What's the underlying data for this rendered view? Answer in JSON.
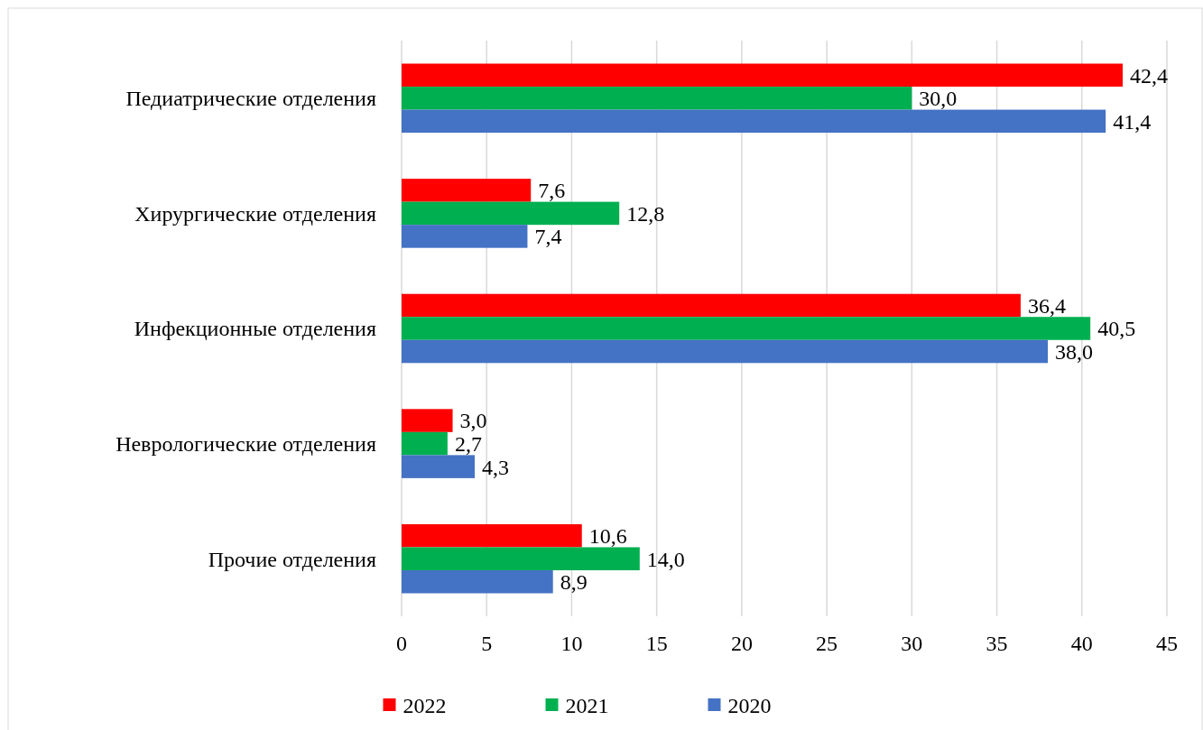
{
  "chart_data": {
    "type": "bar",
    "orientation": "horizontal",
    "categories": [
      "Педиатрические отделения",
      "Хирургические отделения",
      "Инфекционные отделения",
      "Неврологические отделения",
      "Прочие отделения"
    ],
    "series": [
      {
        "name": "2022",
        "color": "#ff0000",
        "values": [
          42.4,
          7.6,
          36.4,
          3.0,
          10.6
        ],
        "value_labels": [
          "42,4",
          "7,6",
          "36,4",
          "3,0",
          "10,6"
        ]
      },
      {
        "name": "2021",
        "color": "#00b050",
        "values": [
          30.0,
          12.8,
          40.5,
          2.7,
          14.0
        ],
        "value_labels": [
          "30,0",
          "12,8",
          "40,5",
          "2,7",
          "14,0"
        ]
      },
      {
        "name": "2020",
        "color": "#4472c4",
        "values": [
          41.4,
          7.4,
          38.0,
          4.3,
          8.9
        ],
        "value_labels": [
          "41,4",
          "7,4",
          "38,0",
          "4,3",
          "8,9"
        ]
      }
    ],
    "xlim": [
      0,
      45
    ],
    "xticks": [
      0,
      5,
      10,
      15,
      20,
      25,
      30,
      35,
      40,
      45
    ],
    "grid": "x",
    "legend": "bottom"
  }
}
